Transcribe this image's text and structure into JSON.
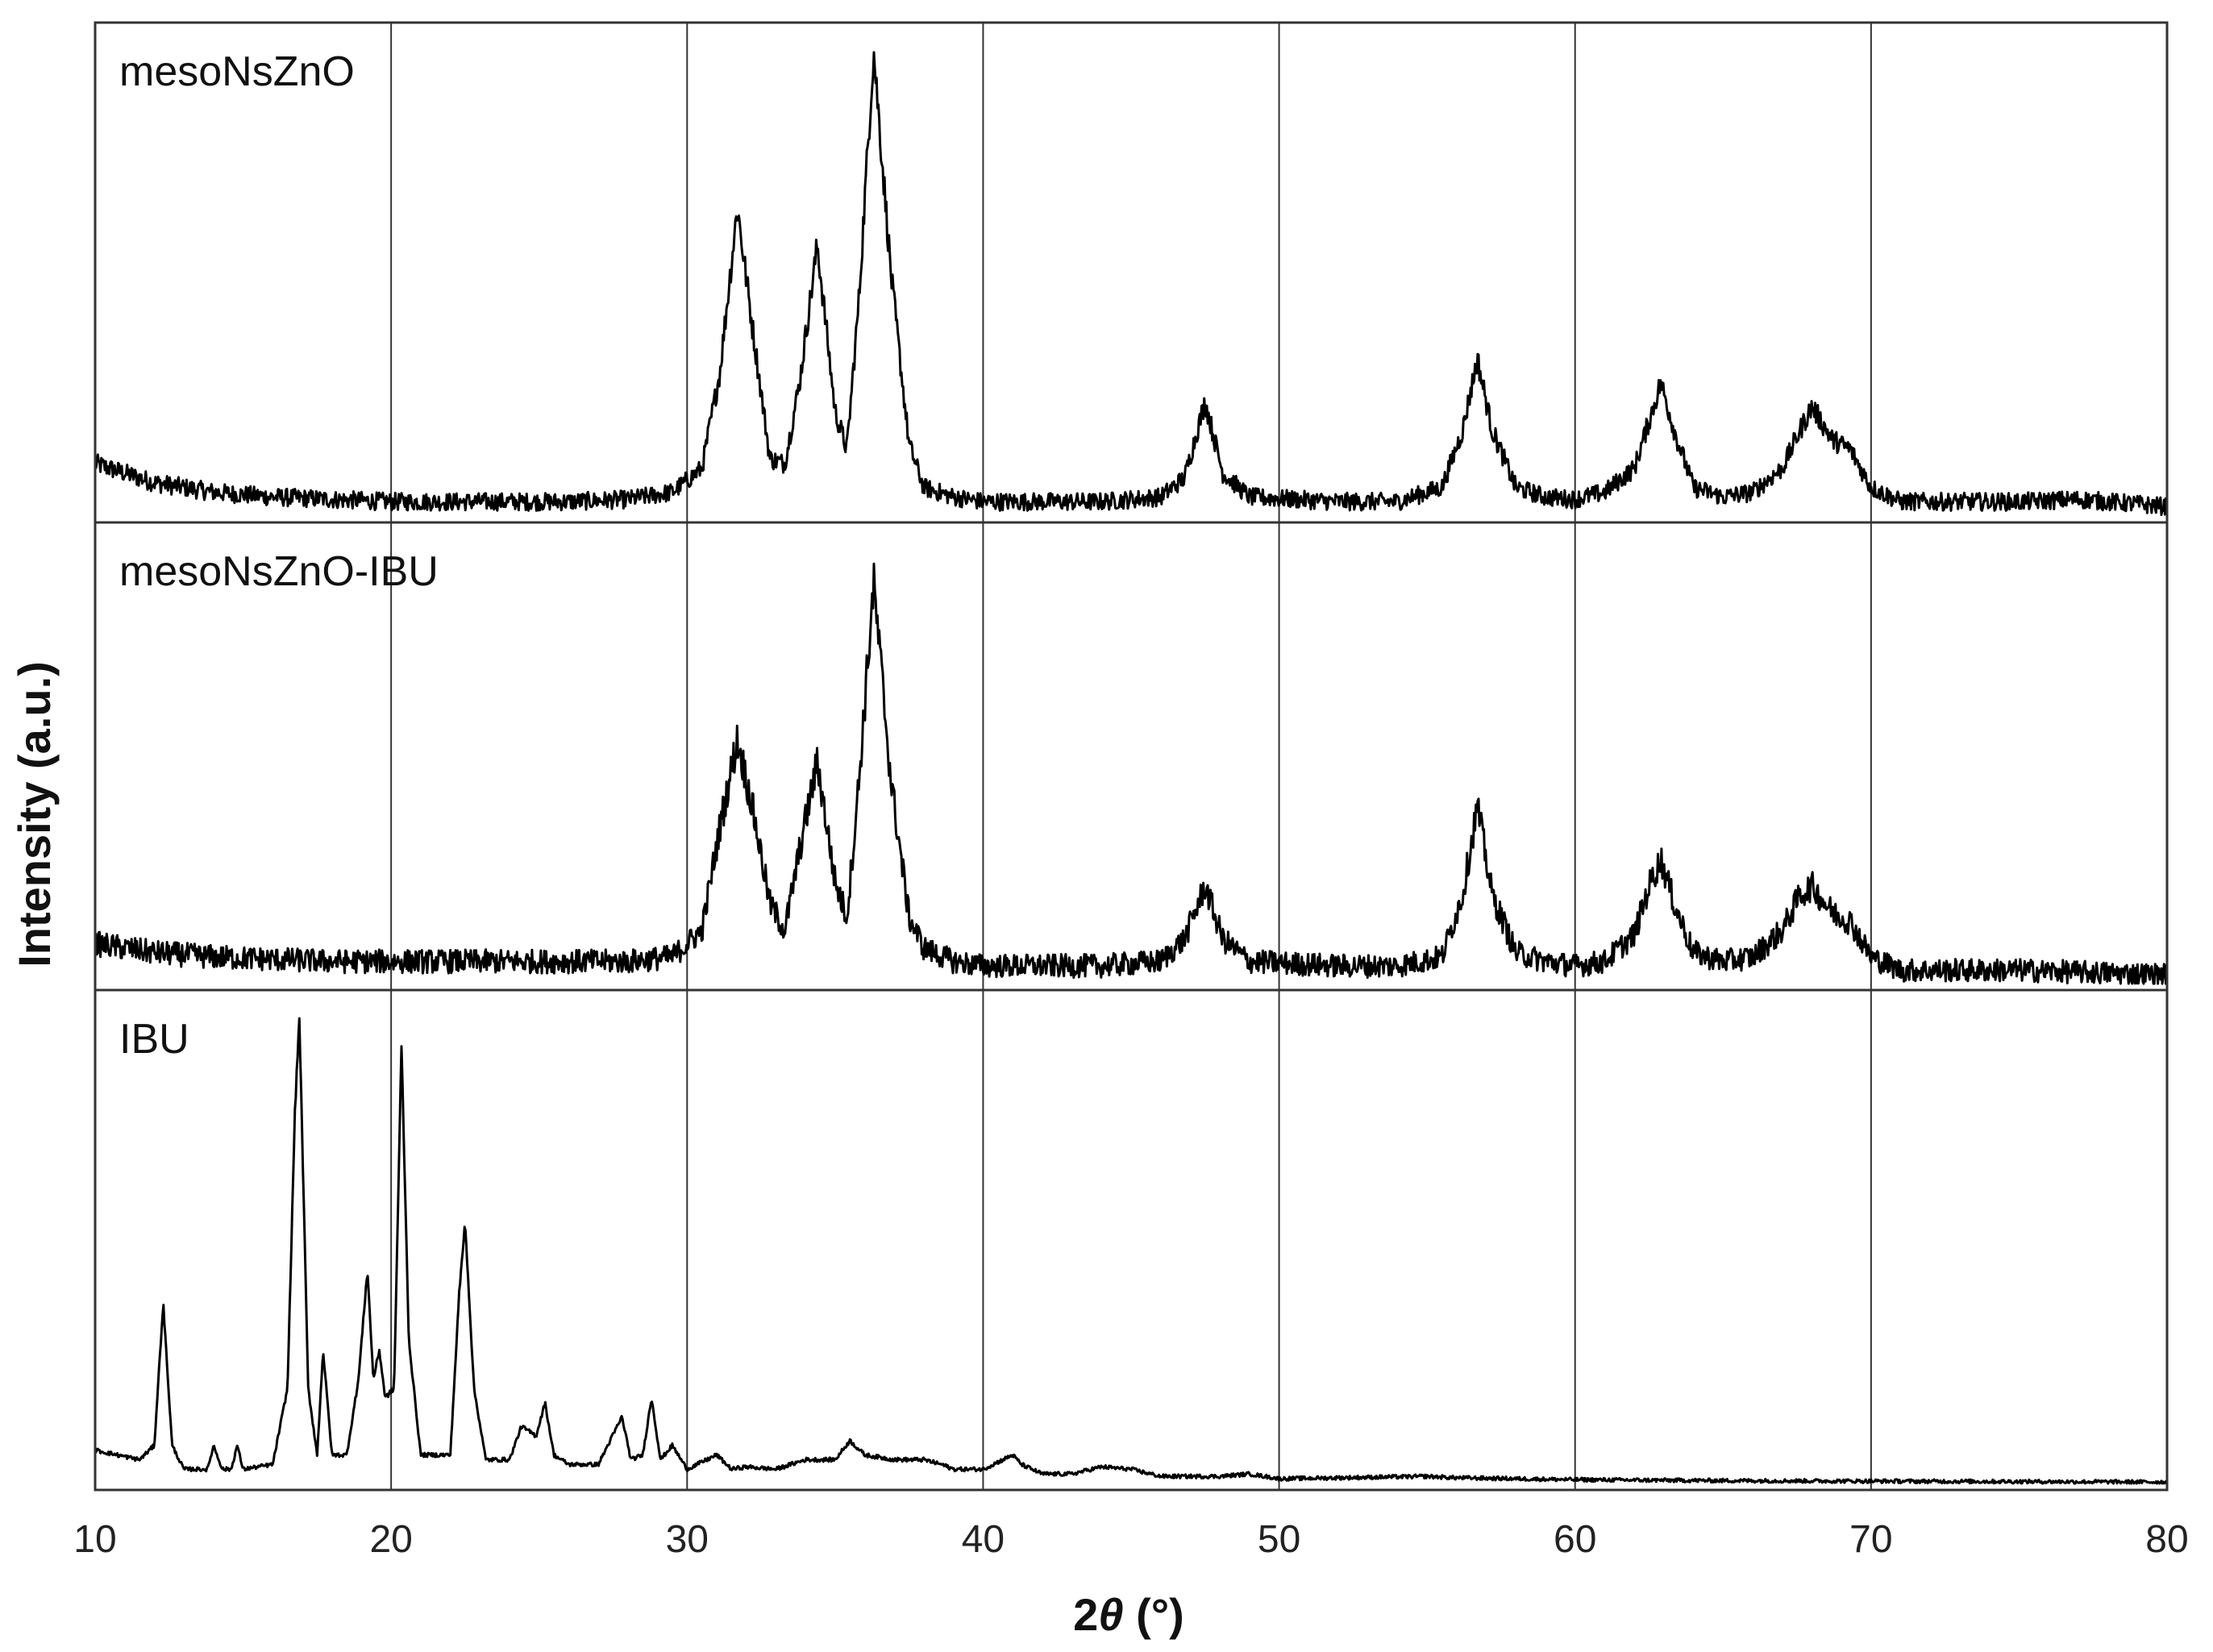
{
  "chart_data": {
    "type": "line",
    "xlabel_prefix": "2",
    "xlabel_symbol": "θ",
    "xlabel_suffix": " (°)",
    "ylabel": "Intensity (a.u.)",
    "xlim": [
      10,
      80
    ],
    "xticks": [
      10,
      20,
      30,
      40,
      50,
      60,
      70,
      80
    ],
    "grid": "vertical",
    "series": [
      {
        "name": "mesoNsZnO",
        "color": "#000000",
        "ylim": [
          0,
          1
        ],
        "noise": 0.018,
        "points": [
          [
            10,
            0.11
          ],
          [
            12,
            0.07
          ],
          [
            14,
            0.05
          ],
          [
            16,
            0.04
          ],
          [
            18,
            0.035
          ],
          [
            20,
            0.03
          ],
          [
            22,
            0.03
          ],
          [
            24,
            0.03
          ],
          [
            26,
            0.03
          ],
          [
            28,
            0.035
          ],
          [
            29.5,
            0.05
          ],
          [
            30.5,
            0.1
          ],
          [
            31.1,
            0.3
          ],
          [
            31.7,
            0.65
          ],
          [
            32.2,
            0.4
          ],
          [
            32.8,
            0.12
          ],
          [
            33.3,
            0.11
          ],
          [
            33.8,
            0.28
          ],
          [
            34.4,
            0.57
          ],
          [
            35,
            0.22
          ],
          [
            35.4,
            0.14
          ],
          [
            35.8,
            0.45
          ],
          [
            36.3,
            0.98
          ],
          [
            36.9,
            0.5
          ],
          [
            37.5,
            0.15
          ],
          [
            38,
            0.06
          ],
          [
            39,
            0.04
          ],
          [
            40,
            0.03
          ],
          [
            42,
            0.03
          ],
          [
            44,
            0.03
          ],
          [
            46,
            0.04
          ],
          [
            46.8,
            0.08
          ],
          [
            47.5,
            0.24
          ],
          [
            48.1,
            0.09
          ],
          [
            49,
            0.04
          ],
          [
            52,
            0.03
          ],
          [
            54,
            0.03
          ],
          [
            55.5,
            0.06
          ],
          [
            56.2,
            0.18
          ],
          [
            56.7,
            0.33
          ],
          [
            57.2,
            0.18
          ],
          [
            58,
            0.06
          ],
          [
            59,
            0.04
          ],
          [
            60,
            0.035
          ],
          [
            61,
            0.05
          ],
          [
            62,
            0.1
          ],
          [
            62.5,
            0.2
          ],
          [
            62.9,
            0.28
          ],
          [
            63.4,
            0.17
          ],
          [
            64,
            0.06
          ],
          [
            65,
            0.04
          ],
          [
            66,
            0.05
          ],
          [
            67,
            0.1
          ],
          [
            67.6,
            0.18
          ],
          [
            68,
            0.23
          ],
          [
            68.7,
            0.16
          ],
          [
            69.3,
            0.14
          ],
          [
            70,
            0.06
          ],
          [
            71,
            0.03
          ],
          [
            75,
            0.03
          ],
          [
            77,
            0.035
          ],
          [
            80,
            0.02
          ]
        ]
      },
      {
        "name": "mesoNsZnO-IBU",
        "color": "#000000",
        "ylim": [
          0,
          1
        ],
        "noise": 0.025,
        "points": [
          [
            10,
            0.09
          ],
          [
            12,
            0.07
          ],
          [
            14,
            0.06
          ],
          [
            16,
            0.055
          ],
          [
            18,
            0.05
          ],
          [
            20,
            0.05
          ],
          [
            22,
            0.05
          ],
          [
            24,
            0.05
          ],
          [
            26,
            0.05
          ],
          [
            28,
            0.05
          ],
          [
            29.5,
            0.06
          ],
          [
            30.5,
            0.12
          ],
          [
            31.1,
            0.35
          ],
          [
            31.7,
            0.55
          ],
          [
            32.2,
            0.4
          ],
          [
            32.8,
            0.18
          ],
          [
            33.3,
            0.12
          ],
          [
            33.8,
            0.3
          ],
          [
            34.4,
            0.5
          ],
          [
            35,
            0.23
          ],
          [
            35.4,
            0.15
          ],
          [
            35.8,
            0.45
          ],
          [
            36.3,
            0.9
          ],
          [
            36.9,
            0.45
          ],
          [
            37.5,
            0.15
          ],
          [
            38,
            0.08
          ],
          [
            39,
            0.05
          ],
          [
            40,
            0.04
          ],
          [
            42,
            0.04
          ],
          [
            44,
            0.04
          ],
          [
            46,
            0.05
          ],
          [
            46.8,
            0.1
          ],
          [
            47.5,
            0.22
          ],
          [
            48.1,
            0.1
          ],
          [
            49,
            0.05
          ],
          [
            52,
            0.04
          ],
          [
            54,
            0.04
          ],
          [
            55.5,
            0.06
          ],
          [
            56.2,
            0.2
          ],
          [
            56.7,
            0.4
          ],
          [
            57.2,
            0.2
          ],
          [
            58,
            0.07
          ],
          [
            59,
            0.05
          ],
          [
            60,
            0.04
          ],
          [
            61,
            0.05
          ],
          [
            62,
            0.11
          ],
          [
            62.5,
            0.22
          ],
          [
            62.9,
            0.28
          ],
          [
            63.4,
            0.17
          ],
          [
            64,
            0.07
          ],
          [
            65,
            0.05
          ],
          [
            66,
            0.06
          ],
          [
            67,
            0.12
          ],
          [
            67.6,
            0.2
          ],
          [
            68,
            0.22
          ],
          [
            68.7,
            0.16
          ],
          [
            69.3,
            0.14
          ],
          [
            70,
            0.06
          ],
          [
            71,
            0.03
          ],
          [
            75,
            0.03
          ],
          [
            80,
            0.02
          ]
        ]
      },
      {
        "name": "IBU",
        "color": "#000000",
        "ylim": [
          0,
          1
        ],
        "noise": 0.004,
        "points": [
          [
            10,
            0.07
          ],
          [
            11.5,
            0.05
          ],
          [
            12,
            0.08
          ],
          [
            12.3,
            0.38
          ],
          [
            12.6,
            0.08
          ],
          [
            13,
            0.03
          ],
          [
            13.8,
            0.03
          ],
          [
            14,
            0.08
          ],
          [
            14.3,
            0.03
          ],
          [
            14.6,
            0.03
          ],
          [
            14.8,
            0.08
          ],
          [
            15,
            0.03
          ],
          [
            16,
            0.04
          ],
          [
            16.5,
            0.2
          ],
          [
            16.75,
            0.78
          ],
          [
            16.9,
            0.98
          ],
          [
            17.2,
            0.2
          ],
          [
            17.5,
            0.06
          ],
          [
            17.7,
            0.28
          ],
          [
            18,
            0.06
          ],
          [
            18.5,
            0.06
          ],
          [
            18.9,
            0.22
          ],
          [
            19.2,
            0.45
          ],
          [
            19.4,
            0.22
          ],
          [
            19.6,
            0.28
          ],
          [
            19.8,
            0.18
          ],
          [
            20.1,
            0.2
          ],
          [
            20.35,
            0.92
          ],
          [
            20.6,
            0.3
          ],
          [
            21,
            0.06
          ],
          [
            22,
            0.06
          ],
          [
            22.3,
            0.4
          ],
          [
            22.5,
            0.55
          ],
          [
            22.8,
            0.2
          ],
          [
            23.2,
            0.05
          ],
          [
            24,
            0.05
          ],
          [
            24.4,
            0.12
          ],
          [
            24.9,
            0.1
          ],
          [
            25.2,
            0.17
          ],
          [
            25.5,
            0.06
          ],
          [
            26,
            0.04
          ],
          [
            27,
            0.04
          ],
          [
            27.8,
            0.14
          ],
          [
            28.1,
            0.05
          ],
          [
            28.5,
            0.06
          ],
          [
            28.8,
            0.18
          ],
          [
            29.1,
            0.05
          ],
          [
            29.5,
            0.08
          ],
          [
            30,
            0.03
          ],
          [
            31,
            0.06
          ],
          [
            31.5,
            0.03
          ],
          [
            32,
            0.035
          ],
          [
            33,
            0.03
          ],
          [
            34,
            0.05
          ],
          [
            35,
            0.05
          ],
          [
            35.5,
            0.09
          ],
          [
            36,
            0.06
          ],
          [
            37,
            0.05
          ],
          [
            38,
            0.05
          ],
          [
            38.6,
            0.04
          ],
          [
            39,
            0.03
          ],
          [
            40,
            0.03
          ],
          [
            41,
            0.06
          ],
          [
            41.3,
            0.04
          ],
          [
            42,
            0.02
          ],
          [
            43,
            0.02
          ],
          [
            44,
            0.035
          ],
          [
            45,
            0.03
          ],
          [
            46,
            0.015
          ],
          [
            48,
            0.015
          ],
          [
            49,
            0.02
          ],
          [
            50,
            0.01
          ],
          [
            55,
            0.015
          ],
          [
            56,
            0.012
          ],
          [
            60,
            0.008
          ],
          [
            65,
            0.006
          ],
          [
            70,
            0.005
          ],
          [
            75,
            0.004
          ],
          [
            80,
            0.003
          ]
        ]
      }
    ]
  }
}
